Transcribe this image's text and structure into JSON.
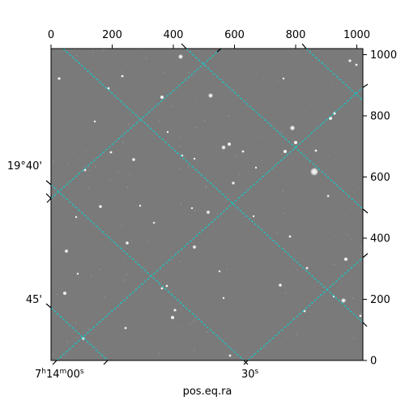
{
  "figure": {
    "xlabel": "pos.eq.ra",
    "top_ticks": [
      "0",
      "200",
      "400",
      "600",
      "800",
      "1000"
    ],
    "right_ticks": [
      "0",
      "200",
      "400",
      "600",
      "800",
      "1000"
    ],
    "left_ticks": [
      "19°40'",
      "45'"
    ],
    "bottom_ticks": [
      "7h14m00s",
      "30s"
    ],
    "bottom_tick_parts": [
      {
        "main": "7",
        "h": "h",
        "mid": "14",
        "m": "m",
        "sec": "00",
        "s": "s"
      },
      {
        "main": "30",
        "s": "s"
      }
    ]
  },
  "colors": {
    "image_background": "#7a7a7a",
    "grid_lines": "#00d8d8",
    "stars": "#ffffff"
  }
}
